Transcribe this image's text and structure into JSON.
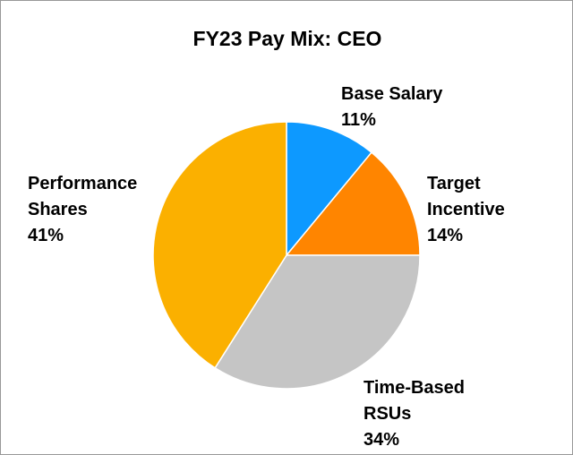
{
  "chart_data": {
    "type": "pie",
    "title": "FY23 Pay Mix: CEO",
    "slices": [
      {
        "name_lines": [
          "Base Salary"
        ],
        "value": 11,
        "value_label": "11%",
        "color": "#0d99ff"
      },
      {
        "name_lines": [
          "Target",
          "Incentive"
        ],
        "value": 14,
        "value_label": "14%",
        "color": "#ff8500"
      },
      {
        "name_lines": [
          "Time-Based",
          "RSUs"
        ],
        "value": 34,
        "value_label": "34%",
        "color": "#c5c5c5"
      },
      {
        "name_lines": [
          "Performance",
          "Shares"
        ],
        "value": 41,
        "value_label": "41%",
        "color": "#fbb000"
      }
    ],
    "start_angle": "12 o'clock",
    "direction": "clockwise",
    "legend": "none (direct labels)"
  }
}
